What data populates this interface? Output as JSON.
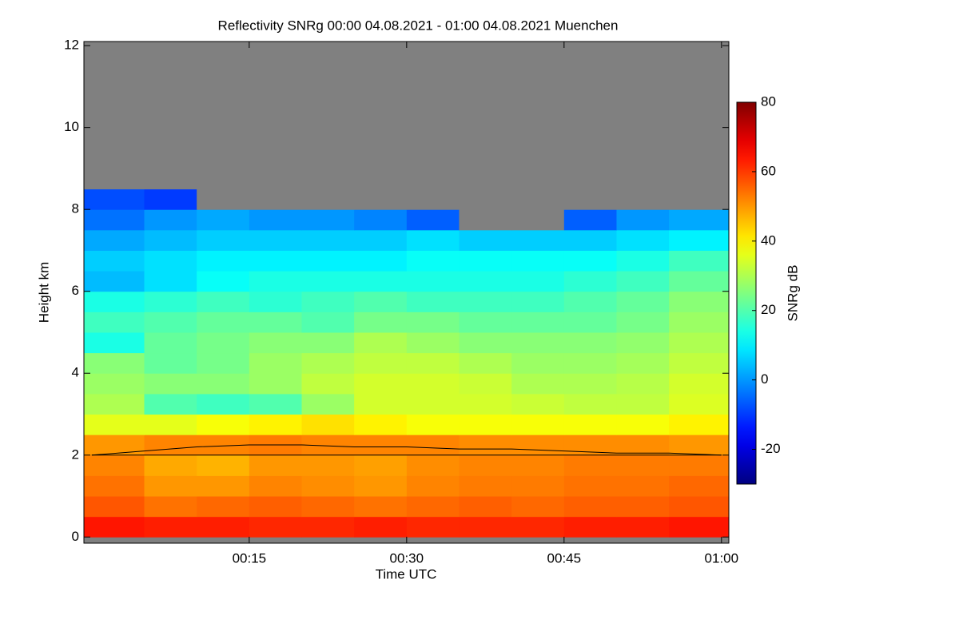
{
  "chart_data": {
    "type": "heatmap",
    "title": "Reflectivity SNRg   00:00 04.08.2021 - 01:00 04.08.2021 Muenchen",
    "x_label": "Time UTC",
    "y_label": "Height km",
    "colorbar_label": "SNRg dB",
    "colormap": "jet",
    "missing_color": "#808080",
    "xlim": [
      -0.75,
      60.7
    ],
    "xticks": [
      {
        "value": 15,
        "label": "00:15"
      },
      {
        "value": 30,
        "label": "00:30"
      },
      {
        "value": 45,
        "label": "00:45"
      },
      {
        "value": 60,
        "label": "01:00"
      }
    ],
    "ylim": [
      -0.15,
      12.1
    ],
    "yticks": [
      0,
      2,
      4,
      6,
      8,
      10,
      12
    ],
    "clim": [
      -30,
      80
    ],
    "cticks": [
      -20,
      0,
      20,
      40,
      60,
      80
    ],
    "x_edges": [
      -0.75,
      5,
      10,
      15,
      20,
      25,
      30,
      35,
      40,
      45,
      50,
      55,
      60.7
    ],
    "y_edges": [
      0,
      0.5,
      1,
      1.5,
      2,
      2.5,
      3,
      3.5,
      4,
      4.5,
      5,
      5.5,
      6,
      6.5,
      7,
      7.5,
      8,
      8.5,
      9,
      9.5,
      10,
      10.5,
      11,
      11.5,
      12
    ],
    "values": [
      [
        64,
        63,
        63,
        62,
        62,
        63,
        62,
        62,
        62,
        63,
        63,
        64
      ],
      [
        57,
        54,
        55,
        56,
        55,
        54,
        55,
        56,
        55,
        56,
        56,
        57
      ],
      [
        54,
        50,
        50,
        52,
        51,
        50,
        52,
        53,
        53,
        54,
        54,
        55
      ],
      [
        52,
        48,
        47,
        50,
        50,
        49,
        51,
        52,
        52,
        53,
        53,
        53
      ],
      [
        50,
        52,
        52,
        53,
        52,
        52,
        52,
        51,
        51,
        51,
        51,
        50
      ],
      [
        36,
        36,
        38,
        40,
        42,
        40,
        38,
        38,
        38,
        38,
        38,
        40
      ],
      [
        30,
        20,
        18,
        20,
        28,
        34,
        34,
        34,
        33,
        32,
        32,
        35
      ],
      [
        28,
        26,
        26,
        28,
        32,
        34,
        34,
        33,
        30,
        30,
        31,
        34
      ],
      [
        26,
        22,
        24,
        28,
        30,
        32,
        32,
        30,
        28,
        28,
        29,
        32
      ],
      [
        14,
        22,
        24,
        26,
        26,
        30,
        28,
        26,
        26,
        26,
        27,
        30
      ],
      [
        18,
        20,
        22,
        22,
        20,
        24,
        24,
        22,
        22,
        22,
        24,
        28
      ],
      [
        14,
        16,
        18,
        16,
        18,
        20,
        18,
        18,
        18,
        20,
        22,
        26
      ],
      [
        4,
        8,
        12,
        14,
        14,
        14,
        14,
        14,
        14,
        16,
        18,
        22
      ],
      [
        6,
        8,
        10,
        10,
        10,
        10,
        12,
        12,
        12,
        12,
        14,
        18
      ],
      [
        2,
        4,
        6,
        6,
        6,
        6,
        8,
        6,
        6,
        6,
        8,
        10
      ],
      [
        -4,
        0,
        2,
        0,
        0,
        -2,
        -6,
        null,
        null,
        -6,
        0,
        2
      ],
      [
        -8,
        -10,
        null,
        null,
        null,
        null,
        null,
        null,
        null,
        null,
        null,
        null
      ],
      [
        null,
        null,
        null,
        null,
        null,
        null,
        null,
        null,
        null,
        null,
        null,
        null
      ],
      [
        null,
        null,
        null,
        null,
        null,
        null,
        null,
        null,
        null,
        null,
        null,
        null
      ],
      [
        null,
        null,
        null,
        null,
        null,
        null,
        null,
        null,
        null,
        null,
        null,
        null
      ],
      [
        null,
        null,
        null,
        null,
        null,
        null,
        null,
        null,
        null,
        null,
        null,
        null
      ],
      [
        null,
        null,
        null,
        null,
        null,
        null,
        null,
        null,
        null,
        null,
        null,
        null
      ],
      [
        null,
        null,
        null,
        null,
        null,
        null,
        null,
        null,
        null,
        null,
        null,
        null
      ],
      [
        null,
        null,
        null,
        null,
        null,
        null,
        null,
        null,
        null,
        null,
        null,
        null
      ]
    ],
    "lines": [
      {
        "color": "#000000",
        "x": [
          0,
          5,
          10,
          15,
          20,
          25,
          30,
          35,
          40,
          45,
          50,
          55,
          60
        ],
        "values": [
          2.0,
          2.1,
          2.2,
          2.25,
          2.25,
          2.2,
          2.2,
          2.15,
          2.15,
          2.1,
          2.05,
          2.05,
          2.0
        ]
      },
      {
        "color": "#000000",
        "x": [
          0,
          60
        ],
        "values": [
          2.0,
          2.0
        ]
      }
    ]
  }
}
